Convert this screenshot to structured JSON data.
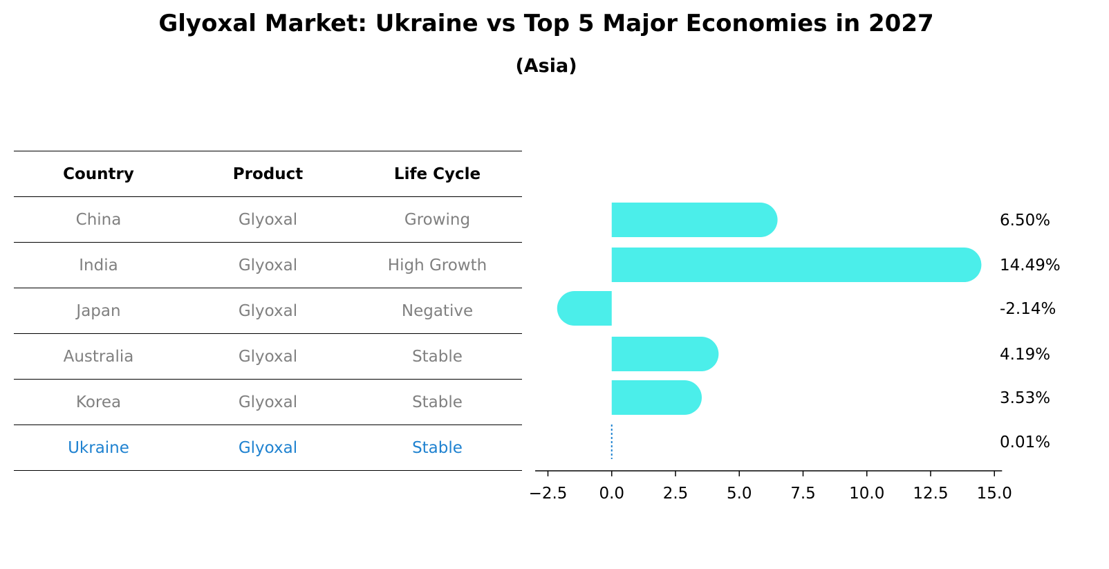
{
  "title": "Glyoxal Market: Ukraine vs Top 5 Major Economies in 2027",
  "subtitle": "(Asia)",
  "table": {
    "headers": [
      "Country",
      "Product",
      "Life Cycle"
    ],
    "rows": [
      [
        "China",
        "Glyoxal",
        "Growing"
      ],
      [
        "India",
        "Glyoxal",
        "High Growth"
      ],
      [
        "Japan",
        "Glyoxal",
        "Negative"
      ],
      [
        "Australia",
        "Glyoxal",
        "Stable"
      ],
      [
        "Korea",
        "Glyoxal",
        "Stable"
      ],
      [
        "Ukraine",
        "Glyoxal",
        "Stable"
      ]
    ]
  },
  "colors": {
    "bar": "#4beeea",
    "highlight": "#1f82d0",
    "muted": "#808080"
  },
  "chart_data": {
    "type": "bar",
    "orientation": "horizontal",
    "categories": [
      "China",
      "India",
      "Japan",
      "Australia",
      "Korea",
      "Ukraine"
    ],
    "values": [
      6.5,
      14.49,
      -2.14,
      4.19,
      3.53,
      0.01
    ],
    "value_labels": [
      "6.50%",
      "14.49%",
      "-2.14%",
      "4.19%",
      "3.53%",
      "0.01%"
    ],
    "xlim": [
      -3,
      15.3
    ],
    "xticks": [
      -2.5,
      0.0,
      2.5,
      5.0,
      7.5,
      10.0,
      12.5,
      15.0
    ],
    "xtick_labels": [
      "−2.5",
      "0.0",
      "2.5",
      "5.0",
      "7.5",
      "10.0",
      "12.5",
      "15.0"
    ],
    "grid": false
  }
}
